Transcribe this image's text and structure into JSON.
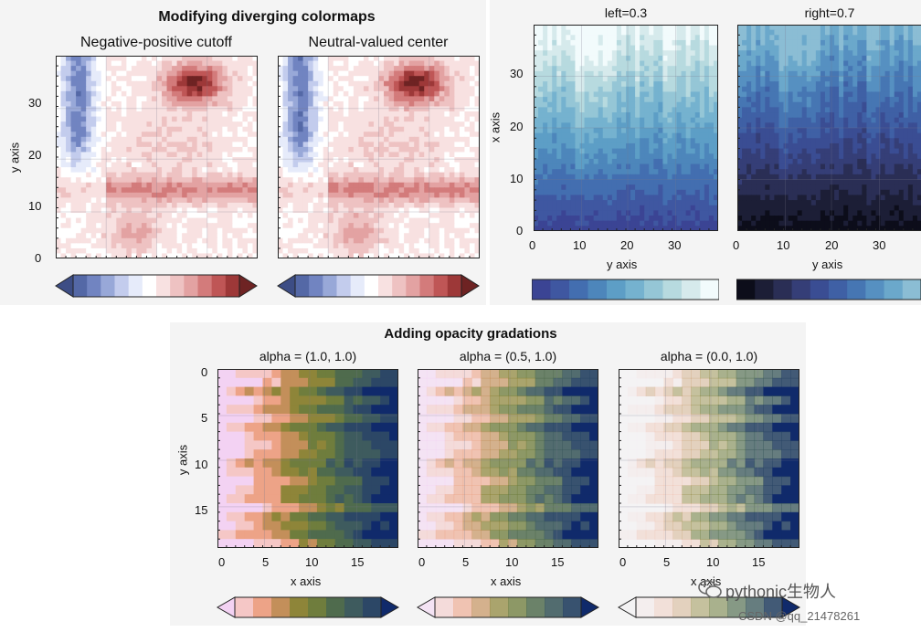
{
  "chart_data": [
    {
      "type": "contour",
      "figure_title": "Modifying diverging colormaps",
      "panels": [
        {
          "title": "Negative-positive cutoff",
          "ylabel": "y axis",
          "yticks": [
            "0",
            "10",
            "20",
            "30"
          ],
          "ylim": [
            0,
            39
          ]
        },
        {
          "title": "Neutral-valued center",
          "ylabel": "",
          "yticks": [],
          "ylim": [
            0,
            39
          ]
        }
      ],
      "colorbar": {
        "levels": 14,
        "extend": "both",
        "colormap": "diverging blue-red"
      }
    },
    {
      "type": "contour",
      "panels": [
        {
          "title": "left=0.3",
          "xlabel": "y axis",
          "ylabel": "x axis",
          "xticks": [
            "0",
            "10",
            "20",
            "30"
          ],
          "yticks": [
            "0",
            "10",
            "20",
            "30"
          ],
          "xlim": [
            0,
            39
          ],
          "ylim": [
            0,
            39
          ]
        },
        {
          "title": "right=0.7",
          "xlabel": "y axis",
          "ylabel": "",
          "xticks": [
            "0",
            "10",
            "20",
            "30"
          ],
          "yticks": [],
          "xlim": [
            0,
            39
          ],
          "ylim": [
            0,
            39
          ]
        }
      ],
      "colorbar": {
        "levels": 10,
        "colormap": "truncated blue"
      }
    },
    {
      "type": "heatmap",
      "figure_title": "Adding opacity gradations",
      "panels": [
        {
          "title": "alpha = (1.0, 1.0)",
          "xlabel": "x axis",
          "ylabel": "y axis",
          "xticks": [
            "0",
            "5",
            "10",
            "15"
          ],
          "yticks": [
            "0",
            "5",
            "10",
            "15"
          ],
          "xlim": [
            0,
            19
          ],
          "ylim": [
            19,
            0
          ]
        },
        {
          "title": "alpha = (0.5, 1.0)",
          "xlabel": "x axis",
          "ylabel": "",
          "xticks": [
            "0",
            "5",
            "10",
            "15"
          ],
          "yticks": [],
          "xlim": [
            0,
            19
          ],
          "ylim": [
            19,
            0
          ]
        },
        {
          "title": "alpha = (0.0, 1.0)",
          "xlabel": "x axis",
          "ylabel": "",
          "xticks": [
            "0",
            "5",
            "10",
            "15"
          ],
          "yticks": [],
          "xlim": [
            0,
            19
          ],
          "ylim": [
            19,
            0
          ]
        }
      ],
      "colorbar": {
        "levels": 10,
        "extend": "both",
        "colormap": "pink-green-navy"
      }
    }
  ],
  "watermark": {
    "main": "pythonic生物人",
    "sub": "CSDN @qq_21478261"
  },
  "colors": {
    "diverging": [
      "#3d4d85",
      "#5468a6",
      "#7184c1",
      "#98a8d8",
      "#c3cced",
      "#e6ebfa",
      "#ffffff",
      "#f8e1e1",
      "#eec2c2",
      "#e3a2a2",
      "#d37b7b",
      "#bf5656",
      "#9d3838",
      "#6e2323"
    ],
    "blue_trunc": [
      "#3b4494",
      "#3f57a1",
      "#436eb0",
      "#4d86bb",
      "#5d9ec6",
      "#75b2cf",
      "#95c6d6",
      "#b7dadf",
      "#d6eaec",
      "#f2fbfc"
    ],
    "blue_dark": [
      "#0c0d1a",
      "#1c1e36",
      "#2a2e55",
      "#353e77",
      "#3a4d93",
      "#3f60a5",
      "#4676b3",
      "#5690c1",
      "#6ba8cb",
      "#8bbdd4"
    ],
    "opacity": [
      "#f3d2f3",
      "#f5c7c6",
      "#eda387",
      "#c38f5a",
      "#8e8539",
      "#6f7d3d",
      "#4f6b4d",
      "#3e5b5e",
      "#2c4766",
      "#102a6b"
    ]
  }
}
